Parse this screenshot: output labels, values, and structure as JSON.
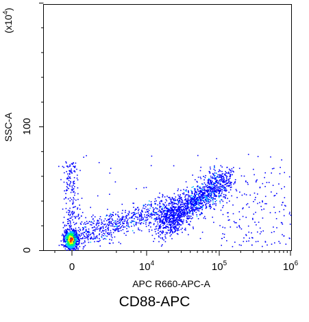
{
  "figure": {
    "title": "CD88-APC"
  },
  "chart_data": {
    "type": "scatter",
    "title": "CD88-APC",
    "xlabel": "APC R660-APC-A",
    "ylabel": "SSC-A",
    "y_multiplier": "(x10^4)",
    "x_scale": "biexponential",
    "x_ticks": [
      "0",
      "10^4",
      "10^5",
      "10^6"
    ],
    "y_ticks": [
      "0",
      "100"
    ],
    "ylim": [
      0,
      250
    ],
    "grid": false,
    "populations": [
      {
        "name": "negative cluster (dense)",
        "x_center": 0,
        "x_spread": 2000,
        "y_center": 10,
        "y_spread": 8,
        "density": "very high"
      },
      {
        "name": "smear",
        "x_range": [
          2000,
          20000
        ],
        "y_range": [
          15,
          45
        ],
        "density": "low"
      },
      {
        "name": "positive cluster",
        "x_center": 40000,
        "x_range": [
          20000,
          110000
        ],
        "y_center": 45,
        "y_range": [
          30,
          70
        ],
        "density": "high"
      },
      {
        "name": "scattered high events",
        "x_range": [
          100000,
          1000000
        ],
        "y_range": [
          10,
          80
        ],
        "density": "very low"
      }
    ],
    "colors": {
      "low_density": "#0000ff",
      "medium_density": "#00c0ff",
      "mid_high_density": "#00ff60",
      "high_density": "#ffff00",
      "peak_density": "#ff3000"
    }
  }
}
